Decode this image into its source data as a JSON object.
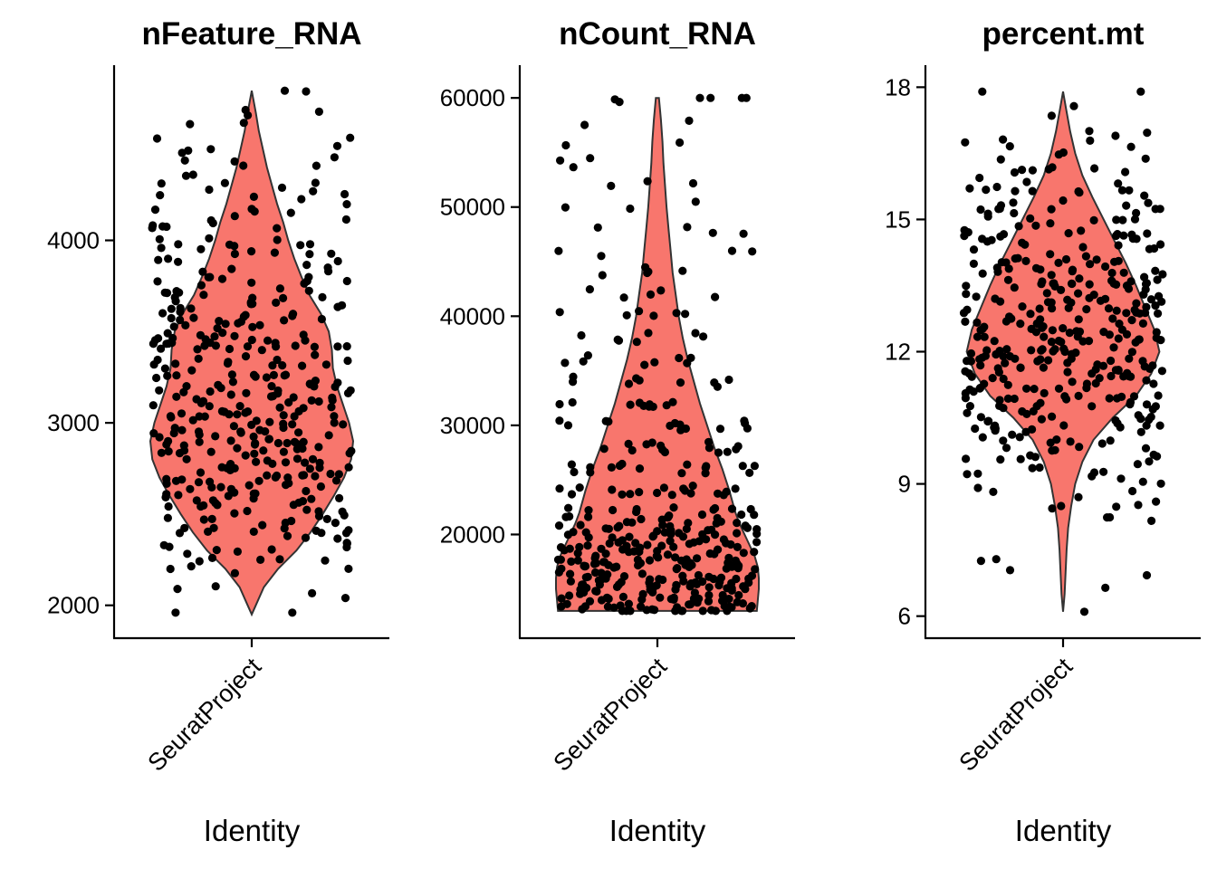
{
  "chart_data": [
    {
      "type": "violin",
      "title": "nFeature_RNA",
      "xlabel": "Identity",
      "ylabel": "",
      "categories": [
        "SeuratProject"
      ],
      "ylim": [
        1820,
        4960
      ],
      "yticks": [
        2000,
        3000,
        4000
      ],
      "grid": false,
      "legend": "none",
      "fill_color": "#F8766D",
      "point_color": "#000000",
      "data_range": [
        1950,
        4820
      ],
      "density_profile": [
        [
          1950,
          0.0
        ],
        [
          2000,
          0.04
        ],
        [
          2100,
          0.12
        ],
        [
          2200,
          0.26
        ],
        [
          2300,
          0.44
        ],
        [
          2400,
          0.58
        ],
        [
          2500,
          0.7
        ],
        [
          2600,
          0.81
        ],
        [
          2700,
          0.91
        ],
        [
          2800,
          0.98
        ],
        [
          2900,
          1.0
        ],
        [
          3000,
          0.96
        ],
        [
          3100,
          0.9
        ],
        [
          3200,
          0.84
        ],
        [
          3300,
          0.8
        ],
        [
          3400,
          0.79
        ],
        [
          3500,
          0.76
        ],
        [
          3600,
          0.68
        ],
        [
          3700,
          0.57
        ],
        [
          3800,
          0.49
        ],
        [
          3900,
          0.42
        ],
        [
          4000,
          0.36
        ],
        [
          4100,
          0.31
        ],
        [
          4200,
          0.25
        ],
        [
          4300,
          0.2
        ],
        [
          4400,
          0.15
        ],
        [
          4500,
          0.11
        ],
        [
          4600,
          0.07
        ],
        [
          4700,
          0.04
        ],
        [
          4820,
          0.0
        ]
      ],
      "points": {
        "count": 400,
        "y_range": [
          1960,
          4820
        ],
        "band_mass": [
          [
            2000,
            3
          ],
          [
            2100,
            3
          ],
          [
            2200,
            7
          ],
          [
            2300,
            11
          ],
          [
            2400,
            14
          ],
          [
            2500,
            17
          ],
          [
            2600,
            20
          ],
          [
            2700,
            23
          ],
          [
            2800,
            25
          ],
          [
            2900,
            26
          ],
          [
            3000,
            25
          ],
          [
            3100,
            23
          ],
          [
            3200,
            21
          ],
          [
            3300,
            20
          ],
          [
            3400,
            20
          ],
          [
            3500,
            19
          ],
          [
            3600,
            17
          ],
          [
            3700,
            15
          ],
          [
            3800,
            13
          ],
          [
            3900,
            11
          ],
          [
            4000,
            10
          ],
          [
            4100,
            9
          ],
          [
            4200,
            8
          ],
          [
            4300,
            7
          ],
          [
            4400,
            6
          ],
          [
            4500,
            5
          ],
          [
            4600,
            4
          ],
          [
            4700,
            3
          ],
          [
            4800,
            2
          ]
        ]
      }
    },
    {
      "type": "violin",
      "title": "nCount_RNA",
      "xlabel": "Identity",
      "ylabel": "",
      "categories": [
        "SeuratProject"
      ],
      "ylim": [
        10500,
        63000
      ],
      "yticks": [
        20000,
        30000,
        40000,
        50000,
        60000
      ],
      "grid": false,
      "legend": "none",
      "fill_color": "#F8766D",
      "point_color": "#000000",
      "data_range": [
        13000,
        60000
      ],
      "density_profile": [
        [
          13000,
          0.98
        ],
        [
          14000,
          0.99
        ],
        [
          15000,
          1.0
        ],
        [
          16000,
          1.0
        ],
        [
          17000,
          0.99
        ],
        [
          18000,
          0.96
        ],
        [
          19000,
          0.91
        ],
        [
          20000,
          0.86
        ],
        [
          21000,
          0.81
        ],
        [
          22000,
          0.77
        ],
        [
          24000,
          0.71
        ],
        [
          26000,
          0.64
        ],
        [
          28000,
          0.56
        ],
        [
          30000,
          0.49
        ],
        [
          32000,
          0.42
        ],
        [
          34000,
          0.36
        ],
        [
          36000,
          0.3
        ],
        [
          38000,
          0.25
        ],
        [
          40000,
          0.21
        ],
        [
          42000,
          0.18
        ],
        [
          44000,
          0.15
        ],
        [
          46000,
          0.13
        ],
        [
          48000,
          0.11
        ],
        [
          50000,
          0.09
        ],
        [
          52000,
          0.075
        ],
        [
          54000,
          0.06
        ],
        [
          56000,
          0.05
        ],
        [
          58000,
          0.035
        ],
        [
          60000,
          0.015
        ]
      ],
      "points": {
        "count": 400,
        "y_range": [
          13000,
          60000
        ],
        "band_mass": [
          [
            13000,
            26
          ],
          [
            14000,
            28
          ],
          [
            15000,
            30
          ],
          [
            16000,
            30
          ],
          [
            17000,
            28
          ],
          [
            18000,
            26
          ],
          [
            19000,
            24
          ],
          [
            20000,
            22
          ],
          [
            21000,
            20
          ],
          [
            22000,
            18
          ],
          [
            24000,
            17
          ],
          [
            26000,
            15
          ],
          [
            28000,
            13
          ],
          [
            30000,
            12
          ],
          [
            32000,
            10
          ],
          [
            34000,
            9
          ],
          [
            36000,
            8
          ],
          [
            38000,
            7
          ],
          [
            40000,
            6
          ],
          [
            42000,
            5
          ],
          [
            44000,
            5
          ],
          [
            46000,
            4
          ],
          [
            48000,
            4
          ],
          [
            50000,
            3
          ],
          [
            52000,
            3
          ],
          [
            54000,
            3
          ],
          [
            56000,
            2
          ],
          [
            58000,
            2
          ],
          [
            60000,
            2
          ]
        ]
      }
    },
    {
      "type": "violin",
      "title": "percent.mt",
      "xlabel": "Identity",
      "ylabel": "",
      "categories": [
        "SeuratProject"
      ],
      "ylim": [
        5.5,
        18.5
      ],
      "yticks": [
        6,
        9,
        12,
        15,
        18
      ],
      "grid": false,
      "legend": "none",
      "fill_color": "#F8766D",
      "point_color": "#000000",
      "data_range": [
        6.1,
        17.9
      ],
      "density_profile": [
        [
          6.1,
          0.0
        ],
        [
          6.5,
          0.015
        ],
        [
          7.0,
          0.025
        ],
        [
          7.5,
          0.035
        ],
        [
          8.0,
          0.05
        ],
        [
          8.5,
          0.08
        ],
        [
          9.0,
          0.12
        ],
        [
          9.5,
          0.19
        ],
        [
          10.0,
          0.3
        ],
        [
          10.5,
          0.49
        ],
        [
          11.0,
          0.72
        ],
        [
          11.5,
          0.87
        ],
        [
          12.0,
          0.95
        ],
        [
          12.5,
          0.9
        ],
        [
          13.0,
          0.81
        ],
        [
          13.5,
          0.72
        ],
        [
          14.0,
          0.62
        ],
        [
          14.5,
          0.51
        ],
        [
          15.0,
          0.4
        ],
        [
          15.5,
          0.29
        ],
        [
          16.0,
          0.19
        ],
        [
          16.5,
          0.12
        ],
        [
          17.0,
          0.07
        ],
        [
          17.5,
          0.03
        ],
        [
          17.9,
          0.0
        ]
      ],
      "points": {
        "count": 400,
        "y_range": [
          6.1,
          17.9
        ],
        "band_mass": [
          [
            6.0,
            1
          ],
          [
            6.5,
            1
          ],
          [
            7.0,
            2
          ],
          [
            7.5,
            2
          ],
          [
            8.0,
            3
          ],
          [
            8.5,
            5
          ],
          [
            9.0,
            8
          ],
          [
            9.5,
            11
          ],
          [
            10.0,
            16
          ],
          [
            10.5,
            22
          ],
          [
            11.0,
            28
          ],
          [
            11.5,
            32
          ],
          [
            12.0,
            33
          ],
          [
            12.5,
            32
          ],
          [
            13.0,
            30
          ],
          [
            13.5,
            27
          ],
          [
            14.0,
            24
          ],
          [
            14.5,
            21
          ],
          [
            15.0,
            17
          ],
          [
            15.5,
            13
          ],
          [
            16.0,
            9
          ],
          [
            16.5,
            6
          ],
          [
            17.0,
            4
          ],
          [
            17.5,
            2
          ],
          [
            18.0,
            1
          ]
        ]
      }
    }
  ]
}
